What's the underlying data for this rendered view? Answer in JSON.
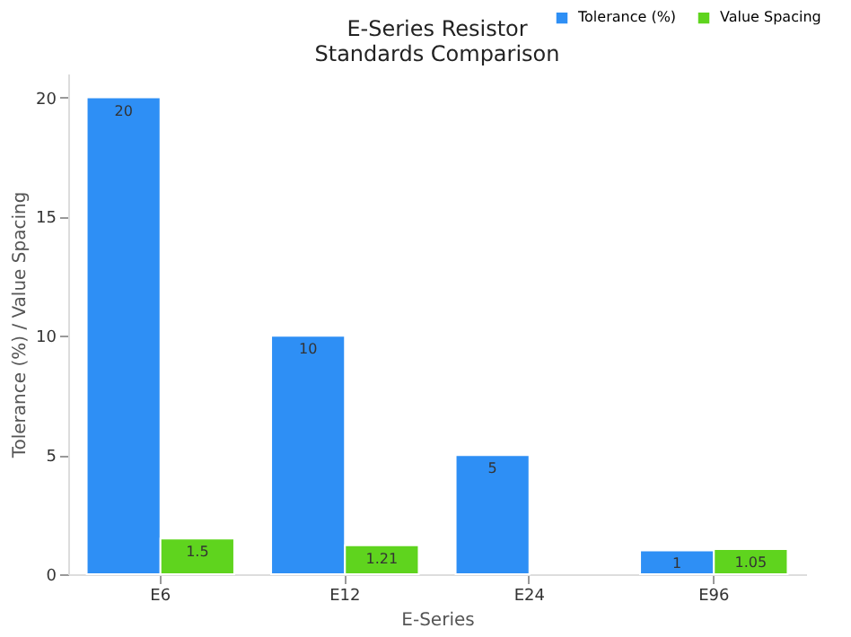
{
  "chart_data": {
    "type": "bar",
    "title": "E-Series Resistor\nStandards Comparison",
    "xlabel": "E-Series",
    "ylabel": "Tolerance (%) / Value Spacing",
    "categories": [
      "E6",
      "E12",
      "E24",
      "E96"
    ],
    "series": [
      {
        "name": "Tolerance (%)",
        "color": "#2e8ff5",
        "values": [
          20,
          10,
          5,
          1
        ]
      },
      {
        "name": "Value Spacing",
        "color": "#5fd41e",
        "values": [
          1.5,
          1.21,
          null,
          1.05
        ]
      }
    ],
    "ylim": [
      0,
      21
    ],
    "yticks": [
      0,
      5,
      10,
      15,
      20
    ],
    "grid": false,
    "legend": "top right",
    "data_labels": true
  }
}
